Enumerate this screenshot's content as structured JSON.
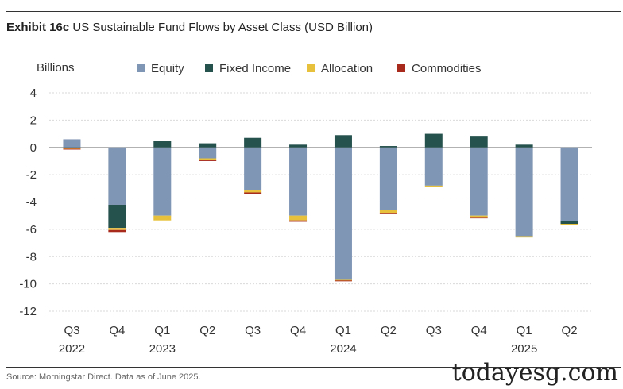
{
  "header": {
    "exhibit": "Exhibit 16c",
    "title": "US Sustainable Fund Flows by Asset Class (USD Billion)"
  },
  "footer": {
    "source": "Source: Morningstar Direct. Data as of June 2025.",
    "watermark": "todayesg.com"
  },
  "chart_data": {
    "type": "bar",
    "stacked": true,
    "title": "US Sustainable Fund Flows by Asset Class (USD Billion)",
    "ylabel": "Billions",
    "ylim": [
      -12,
      4
    ],
    "yticks": [
      4,
      2,
      0,
      -2,
      -4,
      -6,
      -8,
      -10,
      -12
    ],
    "grid": true,
    "legend_position": "top",
    "categories": [
      "Q3",
      "Q4",
      "Q1",
      "Q2",
      "Q3",
      "Q4",
      "Q1",
      "Q2",
      "Q3",
      "Q4",
      "Q1",
      "Q2"
    ],
    "years": [
      "2022",
      "",
      "2023",
      "",
      "",
      "",
      "2024",
      "",
      "",
      "",
      "2025",
      ""
    ],
    "series": [
      {
        "name": "Equity",
        "color": "#8096b5",
        "values": [
          0.6,
          -4.2,
          -5.0,
          -0.8,
          -3.1,
          -5.0,
          -9.7,
          -4.6,
          -2.8,
          -5.0,
          -6.5,
          -5.4
        ]
      },
      {
        "name": "Fixed Income",
        "color": "#26524e",
        "values": [
          -0.05,
          -1.7,
          0.5,
          0.3,
          0.7,
          0.2,
          0.9,
          0.1,
          1.0,
          0.85,
          0.2,
          -0.2
        ]
      },
      {
        "name": "Allocation",
        "color": "#e8c13c",
        "values": [
          -0.05,
          -0.15,
          -0.35,
          -0.1,
          -0.2,
          -0.35,
          -0.05,
          -0.2,
          -0.1,
          -0.1,
          -0.1,
          -0.1
        ]
      },
      {
        "name": "Commodities",
        "color": "#a82a1c",
        "values": [
          -0.05,
          -0.15,
          0.0,
          -0.1,
          -0.1,
          -0.1,
          -0.05,
          -0.05,
          0.0,
          -0.1,
          0.0,
          0.0
        ]
      }
    ]
  }
}
